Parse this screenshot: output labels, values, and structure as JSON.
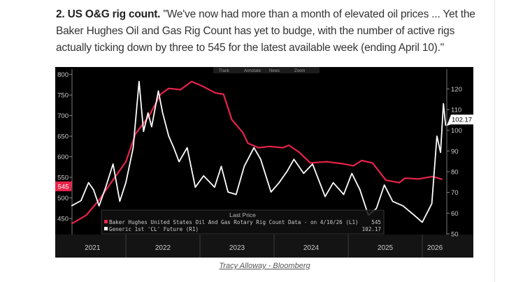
{
  "article": {
    "heading": "2. US O&G rig count.",
    "quote": "\"We've now had more than a month of elevated oil prices ... Yet the Baker Hughes Oil and Gas Rig Count has yet to budge, with the number of active rigs actually ticking down by three to 545 for the latest available week (ending April 10).\"",
    "caption": "Tracy Alloway - Bloomberg"
  },
  "chart_data": {
    "type": "line",
    "toolbar": [
      "Track",
      "Annotate",
      "News",
      "Zoom"
    ],
    "legend_title": "Last Price",
    "legend_placement": "bottom-left",
    "grid": false,
    "x_tick_labels": [
      "2021",
      "2022",
      "2023",
      "2024",
      "2025",
      "2026"
    ],
    "y_left": {
      "ticks": [
        450,
        500,
        550,
        600,
        650,
        700,
        750,
        800
      ],
      "range": [
        415,
        810
      ],
      "last_value_label": "545"
    },
    "y_right": {
      "ticks": [
        50,
        60,
        70,
        80,
        90,
        100,
        110,
        120
      ],
      "range": [
        49,
        128
      ],
      "last_value_label": "102.17"
    },
    "colors": {
      "rig_count": "#e8234a",
      "oil": "#ffffff",
      "background": "#000000"
    },
    "series": [
      {
        "name": "Baker Hughes United States Oil And Gas Rotary Rig Count Data -  on 4/10/26  (L1)",
        "last": "545",
        "axis": "left",
        "x": [
          "2021-04-08",
          "2021-06-20",
          "2021-08-22",
          "2021-10-20",
          "2022-01-01",
          "2022-02-18",
          "2022-04-24",
          "2022-06-21",
          "2022-07-31",
          "2022-09-27",
          "2022-11-21",
          "2023-01-12",
          "2023-03-18",
          "2023-04-27",
          "2023-06-07",
          "2023-07-31",
          "2023-08-25",
          "2023-10-16",
          "2023-12-10",
          "2024-02-14",
          "2024-03-14",
          "2024-05-04",
          "2024-06-28",
          "2024-09-16",
          "2024-12-06",
          "2025-01-26",
          "2025-03-08",
          "2025-05-01",
          "2025-07-06",
          "2025-09-09",
          "2025-10-08",
          "2025-12-12",
          "2026-02-20",
          "2026-04-10"
        ],
        "values": [
          437,
          458,
          495,
          537,
          588,
          656,
          698,
          752,
          766,
          763,
          783,
          772,
          755,
          752,
          690,
          659,
          633,
          622,
          625,
          622,
          628,
          611,
          585,
          588,
          583,
          578,
          591,
          585,
          543,
          537,
          548,
          546,
          552,
          545
        ]
      },
      {
        "name": "Generic 1st 'CL' Future  (R1)",
        "last": "102.17",
        "axis": "right",
        "x": [
          "2021-04-08",
          "2021-05-25",
          "2021-07-01",
          "2021-07-26",
          "2021-08-22",
          "2021-09-24",
          "2021-10-30",
          "2021-12-02",
          "2022-01-01",
          "2022-02-06",
          "2022-03-07",
          "2022-03-29",
          "2022-04-20",
          "2022-05-08",
          "2022-06-10",
          "2022-07-01",
          "2022-07-31",
          "2022-08-25",
          "2022-09-20",
          "2022-10-30",
          "2022-12-09",
          "2023-01-19",
          "2023-03-14",
          "2023-04-16",
          "2023-05-19",
          "2023-06-28",
          "2023-08-07",
          "2023-09-24",
          "2023-10-27",
          "2023-12-17",
          "2024-01-26",
          "2024-03-06",
          "2024-04-08",
          "2024-05-26",
          "2024-07-09",
          "2024-09-09",
          "2024-10-19",
          "2024-12-10",
          "2025-01-19",
          "2025-02-28",
          "2025-04-10",
          "2025-05-20",
          "2025-06-28",
          "2025-08-08",
          "2025-09-28",
          "2025-11-22",
          "2026-01-01",
          "2026-02-17",
          "2026-03-14",
          "2026-04-01",
          "2026-04-15",
          "2026-04-26"
        ],
        "values": [
          63.5,
          66,
          74.7,
          71.3,
          63.5,
          72.5,
          83.7,
          65.7,
          74.7,
          91.6,
          123.6,
          99.4,
          108.4,
          101.7,
          119,
          108.4,
          97.2,
          91.6,
          84.8,
          91.6,
          72.5,
          78,
          72.5,
          82.6,
          70.2,
          69,
          82.6,
          91.6,
          86,
          70.2,
          74.7,
          80.3,
          86,
          79.2,
          83.7,
          68,
          74.7,
          69,
          79.2,
          71.3,
          59,
          62.3,
          73.6,
          65.7,
          63.5,
          59,
          55.6,
          64.6,
          97.2,
          89.3,
          112.9,
          102.17
        ]
      }
    ]
  }
}
